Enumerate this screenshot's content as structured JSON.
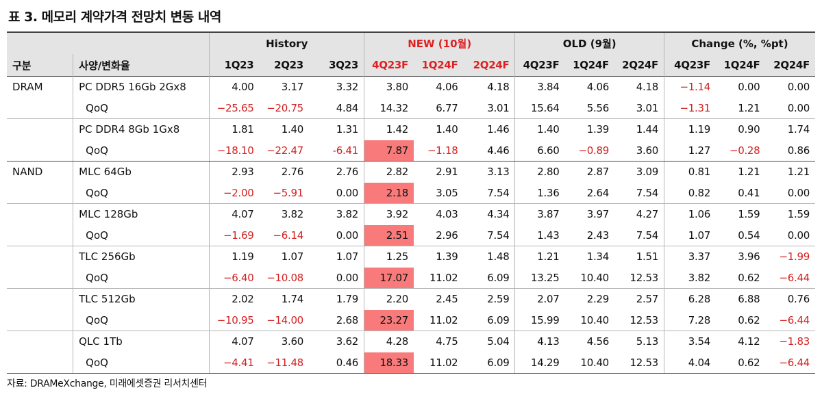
{
  "title": "표 3. 메모리 계약가격 전망치 변동 내역",
  "groups": {
    "history": "History",
    "new": "NEW (10월)",
    "old": "OLD (9월)",
    "change": "Change (%, %pt)"
  },
  "columns": {
    "category": "구분",
    "spec": "사양/변화율",
    "periods": [
      "1Q23",
      "2Q23",
      "3Q23",
      "4Q23F",
      "1Q24F",
      "2Q24F",
      "4Q23F",
      "1Q24F",
      "2Q24F",
      "4Q23F",
      "1Q24F",
      "2Q24F"
    ]
  },
  "rows": [
    {
      "cat": "DRAM",
      "spec": "PC DDR5 16Gb 2Gx8",
      "values": [
        "4.00",
        "3.17",
        "3.32",
        "3.80",
        "4.06",
        "4.18",
        "3.84",
        "4.06",
        "4.18",
        "−1.14",
        "0.00",
        "0.00"
      ]
    },
    {
      "cat": "",
      "spec": "QoQ",
      "values": [
        "−25.65",
        "−20.75",
        "4.84",
        "14.32",
        "6.77",
        "3.01",
        "15.64",
        "5.56",
        "3.01",
        "−1.31",
        "1.21",
        "0.00"
      ]
    },
    {
      "cat": "",
      "spec": "PC DDR4 8Gb 1Gx8",
      "values": [
        "1.81",
        "1.40",
        "1.31",
        "1.42",
        "1.40",
        "1.46",
        "1.40",
        "1.39",
        "1.44",
        "1.19",
        "0.90",
        "1.74"
      ]
    },
    {
      "cat": "",
      "spec": "QoQ",
      "values": [
        "−18.10",
        "−22.47",
        "-6.41",
        "7.87",
        "−1.18",
        "4.46",
        "6.60",
        "−0.89",
        "3.60",
        "1.27",
        "−0.28",
        "0.86"
      ]
    },
    {
      "cat": "NAND",
      "spec": "MLC 64Gb",
      "values": [
        "2.93",
        "2.76",
        "2.76",
        "2.82",
        "2.91",
        "3.13",
        "2.80",
        "2.87",
        "3.09",
        "0.81",
        "1.21",
        "1.21"
      ]
    },
    {
      "cat": "",
      "spec": "QoQ",
      "values": [
        "−2.00",
        "−5.91",
        "0.00",
        "2.18",
        "3.05",
        "7.54",
        "1.36",
        "2.64",
        "7.54",
        "0.82",
        "0.41",
        "0.00"
      ]
    },
    {
      "cat": "",
      "spec": "MLC 128Gb",
      "values": [
        "4.07",
        "3.82",
        "3.82",
        "3.92",
        "4.03",
        "4.34",
        "3.87",
        "3.97",
        "4.27",
        "1.06",
        "1.59",
        "1.59"
      ]
    },
    {
      "cat": "",
      "spec": "QoQ",
      "values": [
        "−1.69",
        "−6.14",
        "0.00",
        "2.51",
        "2.96",
        "7.54",
        "1.43",
        "2.43",
        "7.54",
        "1.07",
        "0.54",
        "0.00"
      ]
    },
    {
      "cat": "",
      "spec": "TLC 256Gb",
      "values": [
        "1.19",
        "1.07",
        "1.07",
        "1.25",
        "1.39",
        "1.48",
        "1.21",
        "1.34",
        "1.51",
        "3.37",
        "3.96",
        "−1.99"
      ]
    },
    {
      "cat": "",
      "spec": "QoQ",
      "values": [
        "−6.40",
        "−10.08",
        "0.00",
        "17.07",
        "11.02",
        "6.09",
        "13.25",
        "10.40",
        "12.53",
        "3.82",
        "0.62",
        "−6.44"
      ]
    },
    {
      "cat": "",
      "spec": "TLC 512Gb",
      "values": [
        "2.02",
        "1.74",
        "1.79",
        "2.20",
        "2.45",
        "2.59",
        "2.07",
        "2.29",
        "2.57",
        "6.28",
        "6.88",
        "0.76"
      ]
    },
    {
      "cat": "",
      "spec": "QoQ",
      "values": [
        "−10.95",
        "−14.00",
        "2.68",
        "23.27",
        "11.02",
        "6.09",
        "15.99",
        "10.40",
        "12.53",
        "7.28",
        "0.62",
        "−6.44"
      ]
    },
    {
      "cat": "",
      "spec": "QLC 1Tb",
      "values": [
        "4.07",
        "3.60",
        "3.62",
        "4.28",
        "4.75",
        "5.04",
        "4.13",
        "4.56",
        "5.13",
        "3.54",
        "4.12",
        "−1.83"
      ]
    },
    {
      "cat": "",
      "spec": "QoQ",
      "values": [
        "−4.41",
        "−11.48",
        "0.46",
        "18.33",
        "11.02",
        "6.09",
        "14.29",
        "10.40",
        "12.53",
        "4.04",
        "0.62",
        "−6.44"
      ]
    }
  ],
  "highlight_color": "#f87a7a",
  "negative_color": "#d42020",
  "new_header_color": "#e02020",
  "source": "자료: DRAMeXchange, 미래에셋증권 리서치센터"
}
